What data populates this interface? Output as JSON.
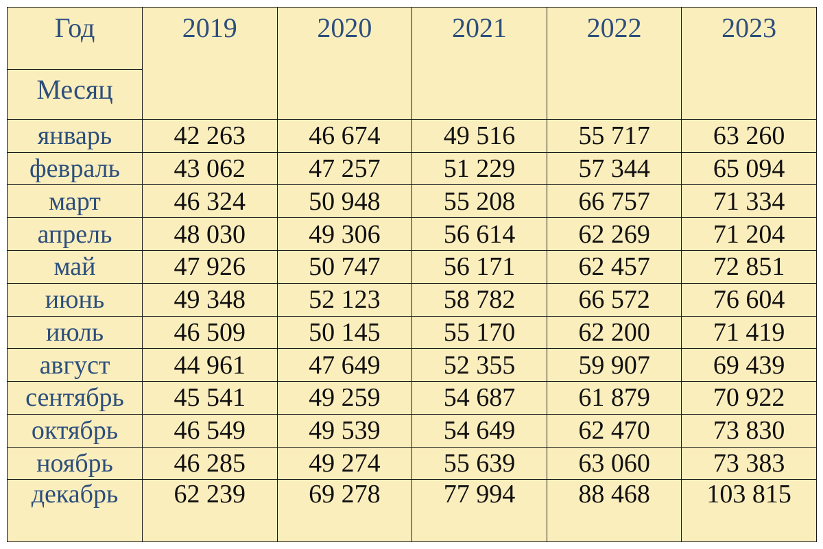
{
  "header": {
    "corner_top": "Год",
    "corner_bottom": "Месяц",
    "years": [
      "2019",
      "2020",
      "2021",
      "2022",
      "2023"
    ]
  },
  "colors": {
    "background": "#fbeebd",
    "label_text": "#2c4f7c",
    "value_text": "#111111",
    "border": "#1a1a1a"
  },
  "rows": [
    {
      "month": "январь",
      "values": [
        "42 263",
        "46 674",
        "49 516",
        "55 717",
        "63 260"
      ]
    },
    {
      "month": "февраль",
      "values": [
        "43 062",
        "47 257",
        "51 229",
        "57 344",
        "65 094"
      ]
    },
    {
      "month": "март",
      "values": [
        "46 324",
        "50 948",
        "55 208",
        "66 757",
        "71 334"
      ]
    },
    {
      "month": "апрель",
      "values": [
        "48 030",
        "49 306",
        "56 614",
        "62 269",
        "71 204"
      ]
    },
    {
      "month": "май",
      "values": [
        "47 926",
        "50 747",
        "56 171",
        "62 457",
        "72 851"
      ]
    },
    {
      "month": "июнь",
      "values": [
        "49 348",
        "52 123",
        "58 782",
        "66 572",
        "76 604"
      ]
    },
    {
      "month": "июль",
      "values": [
        "46 509",
        "50 145",
        "55 170",
        "62 200",
        "71 419"
      ]
    },
    {
      "month": "август",
      "values": [
        "44 961",
        "47 649",
        "52 355",
        "59 907",
        "69 439"
      ]
    },
    {
      "month": "сентябрь",
      "values": [
        "45 541",
        "49 259",
        "54 687",
        "61 879",
        "70 922"
      ]
    },
    {
      "month": "октябрь",
      "values": [
        "46 549",
        "49 539",
        "54 649",
        "62 470",
        "73 830"
      ]
    },
    {
      "month": "ноябрь",
      "values": [
        "46 285",
        "49 274",
        "55 639",
        "63 060",
        "73 383"
      ]
    },
    {
      "month": "декабрь",
      "values": [
        "62 239",
        "69 278",
        "77 994",
        "88 468",
        "103 815"
      ]
    }
  ]
}
